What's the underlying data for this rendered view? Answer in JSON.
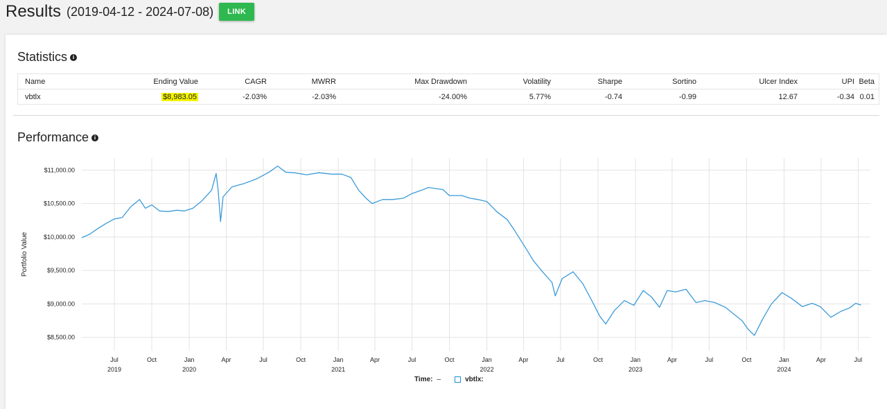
{
  "header": {
    "title": "Results",
    "range": "(2019-04-12 - 2024-07-08)",
    "link_label": "LINK"
  },
  "statistics": {
    "title": "Statistics",
    "info_icon": "info-icon",
    "columns": [
      "Name",
      "Ending Value",
      "CAGR",
      "MWRR",
      "Max Drawdown",
      "Volatility",
      "Sharpe",
      "Sortino",
      "Ulcer Index",
      "UPI",
      "Beta"
    ],
    "row": {
      "name": "vbtlx",
      "ending_value": "$8,983.05",
      "cagr": "-2.03%",
      "mwrr": "-2.03%",
      "max_drawdown": "-24.00%",
      "volatility": "5.77%",
      "sharpe": "-0.74",
      "sortino": "-0.99",
      "ulcer_index": "12.67",
      "upi": "-0.34",
      "beta": "0.01"
    },
    "highlight_color": "#f4f400"
  },
  "performance": {
    "title": "Performance",
    "info_icon": "info-icon"
  },
  "legend": {
    "time_label": "Time:",
    "time_value": "–",
    "series_label": "vbtlx:"
  },
  "chart_data": {
    "type": "line",
    "ylabel": "Portfolio Value",
    "xlabel": "",
    "ylim": [
      8300,
      11180
    ],
    "xlim": [
      "2019-04-12",
      "2024-07-31"
    ],
    "yticks": [
      {
        "value": 8500,
        "label": "$8,500.00"
      },
      {
        "value": 9000,
        "label": "$9,000.00"
      },
      {
        "value": 9500,
        "label": "$9,500.00"
      },
      {
        "value": 10000,
        "label": "$10,000.00"
      },
      {
        "value": 10500,
        "label": "$10,500.00"
      },
      {
        "value": 11000,
        "label": "$11,000.00"
      }
    ],
    "xticks": [
      {
        "date": "2019-07-01",
        "label": "Jul",
        "year": "2019"
      },
      {
        "date": "2019-10-01",
        "label": "Oct",
        "year": ""
      },
      {
        "date": "2020-01-01",
        "label": "Jan",
        "year": "2020"
      },
      {
        "date": "2020-04-01",
        "label": "Apr",
        "year": ""
      },
      {
        "date": "2020-07-01",
        "label": "Jul",
        "year": ""
      },
      {
        "date": "2020-10-01",
        "label": "Oct",
        "year": ""
      },
      {
        "date": "2021-01-01",
        "label": "Jan",
        "year": "2021"
      },
      {
        "date": "2021-04-01",
        "label": "Apr",
        "year": ""
      },
      {
        "date": "2021-07-01",
        "label": "Jul",
        "year": ""
      },
      {
        "date": "2021-10-01",
        "label": "Oct",
        "year": ""
      },
      {
        "date": "2022-01-01",
        "label": "Jan",
        "year": "2022"
      },
      {
        "date": "2022-04-01",
        "label": "Apr",
        "year": ""
      },
      {
        "date": "2022-07-01",
        "label": "Jul",
        "year": ""
      },
      {
        "date": "2022-10-01",
        "label": "Oct",
        "year": ""
      },
      {
        "date": "2023-01-01",
        "label": "Jan",
        "year": "2023"
      },
      {
        "date": "2023-04-01",
        "label": "Apr",
        "year": ""
      },
      {
        "date": "2023-07-01",
        "label": "Jul",
        "year": ""
      },
      {
        "date": "2023-10-01",
        "label": "Oct",
        "year": ""
      },
      {
        "date": "2024-01-01",
        "label": "Jan",
        "year": "2024"
      },
      {
        "date": "2024-04-01",
        "label": "Apr",
        "year": ""
      },
      {
        "date": "2024-07-01",
        "label": "Jul",
        "year": ""
      }
    ],
    "grid": true,
    "legend_placement": "bottom-center",
    "series": [
      {
        "name": "vbtlx",
        "color": "#3a9ad9",
        "points": [
          [
            "2019-04-12",
            9990
          ],
          [
            "2019-05-01",
            10040
          ],
          [
            "2019-05-20",
            10120
          ],
          [
            "2019-06-10",
            10200
          ],
          [
            "2019-07-01",
            10270
          ],
          [
            "2019-07-20",
            10290
          ],
          [
            "2019-08-10",
            10450
          ],
          [
            "2019-09-01",
            10560
          ],
          [
            "2019-09-15",
            10430
          ],
          [
            "2019-10-01",
            10480
          ],
          [
            "2019-10-20",
            10390
          ],
          [
            "2019-11-10",
            10380
          ],
          [
            "2019-12-01",
            10400
          ],
          [
            "2019-12-20",
            10390
          ],
          [
            "2020-01-10",
            10430
          ],
          [
            "2020-02-01",
            10540
          ],
          [
            "2020-02-25",
            10700
          ],
          [
            "2020-03-07",
            10950
          ],
          [
            "2020-03-12",
            10700
          ],
          [
            "2020-03-18",
            10230
          ],
          [
            "2020-03-24",
            10600
          ],
          [
            "2020-04-15",
            10750
          ],
          [
            "2020-05-15",
            10800
          ],
          [
            "2020-06-15",
            10870
          ],
          [
            "2020-07-15",
            10970
          ],
          [
            "2020-08-05",
            11060
          ],
          [
            "2020-08-25",
            10970
          ],
          [
            "2020-09-15",
            10960
          ],
          [
            "2020-10-15",
            10930
          ],
          [
            "2020-11-15",
            10960
          ],
          [
            "2020-12-15",
            10940
          ],
          [
            "2021-01-10",
            10940
          ],
          [
            "2021-02-01",
            10890
          ],
          [
            "2021-02-20",
            10700
          ],
          [
            "2021-03-10",
            10580
          ],
          [
            "2021-03-25",
            10500
          ],
          [
            "2021-04-20",
            10560
          ],
          [
            "2021-05-15",
            10560
          ],
          [
            "2021-06-10",
            10580
          ],
          [
            "2021-07-01",
            10650
          ],
          [
            "2021-07-25",
            10700
          ],
          [
            "2021-08-10",
            10740
          ],
          [
            "2021-09-15",
            10710
          ],
          [
            "2021-10-01",
            10620
          ],
          [
            "2021-11-01",
            10620
          ],
          [
            "2021-11-20",
            10580
          ],
          [
            "2021-12-10",
            10560
          ],
          [
            "2022-01-01",
            10530
          ],
          [
            "2022-01-25",
            10380
          ],
          [
            "2022-02-20",
            10260
          ],
          [
            "2022-03-10",
            10100
          ],
          [
            "2022-04-10",
            9800
          ],
          [
            "2022-04-25",
            9650
          ],
          [
            "2022-05-15",
            9500
          ],
          [
            "2022-06-10",
            9320
          ],
          [
            "2022-06-18",
            9120
          ],
          [
            "2022-07-05",
            9380
          ],
          [
            "2022-08-01",
            9480
          ],
          [
            "2022-08-25",
            9300
          ],
          [
            "2022-09-20",
            9000
          ],
          [
            "2022-10-05",
            8820
          ],
          [
            "2022-10-20",
            8700
          ],
          [
            "2022-11-10",
            8900
          ],
          [
            "2022-12-05",
            9050
          ],
          [
            "2022-12-28",
            8980
          ],
          [
            "2023-01-20",
            9200
          ],
          [
            "2023-02-10",
            9100
          ],
          [
            "2023-03-01",
            8950
          ],
          [
            "2023-03-20",
            9200
          ],
          [
            "2023-04-10",
            9180
          ],
          [
            "2023-05-05",
            9220
          ],
          [
            "2023-05-30",
            9020
          ],
          [
            "2023-06-20",
            9050
          ],
          [
            "2023-07-15",
            9020
          ],
          [
            "2023-08-10",
            8950
          ],
          [
            "2023-08-30",
            8850
          ],
          [
            "2023-09-20",
            8750
          ],
          [
            "2023-10-05",
            8620
          ],
          [
            "2023-10-20",
            8530
          ],
          [
            "2023-11-10",
            8780
          ],
          [
            "2023-12-01",
            9000
          ],
          [
            "2023-12-27",
            9170
          ],
          [
            "2024-01-20",
            9080
          ],
          [
            "2024-02-15",
            8960
          ],
          [
            "2024-03-10",
            9010
          ],
          [
            "2024-03-30",
            8960
          ],
          [
            "2024-04-25",
            8800
          ],
          [
            "2024-05-20",
            8890
          ],
          [
            "2024-06-10",
            8940
          ],
          [
            "2024-06-25",
            9010
          ],
          [
            "2024-07-08",
            8983
          ]
        ]
      }
    ]
  }
}
